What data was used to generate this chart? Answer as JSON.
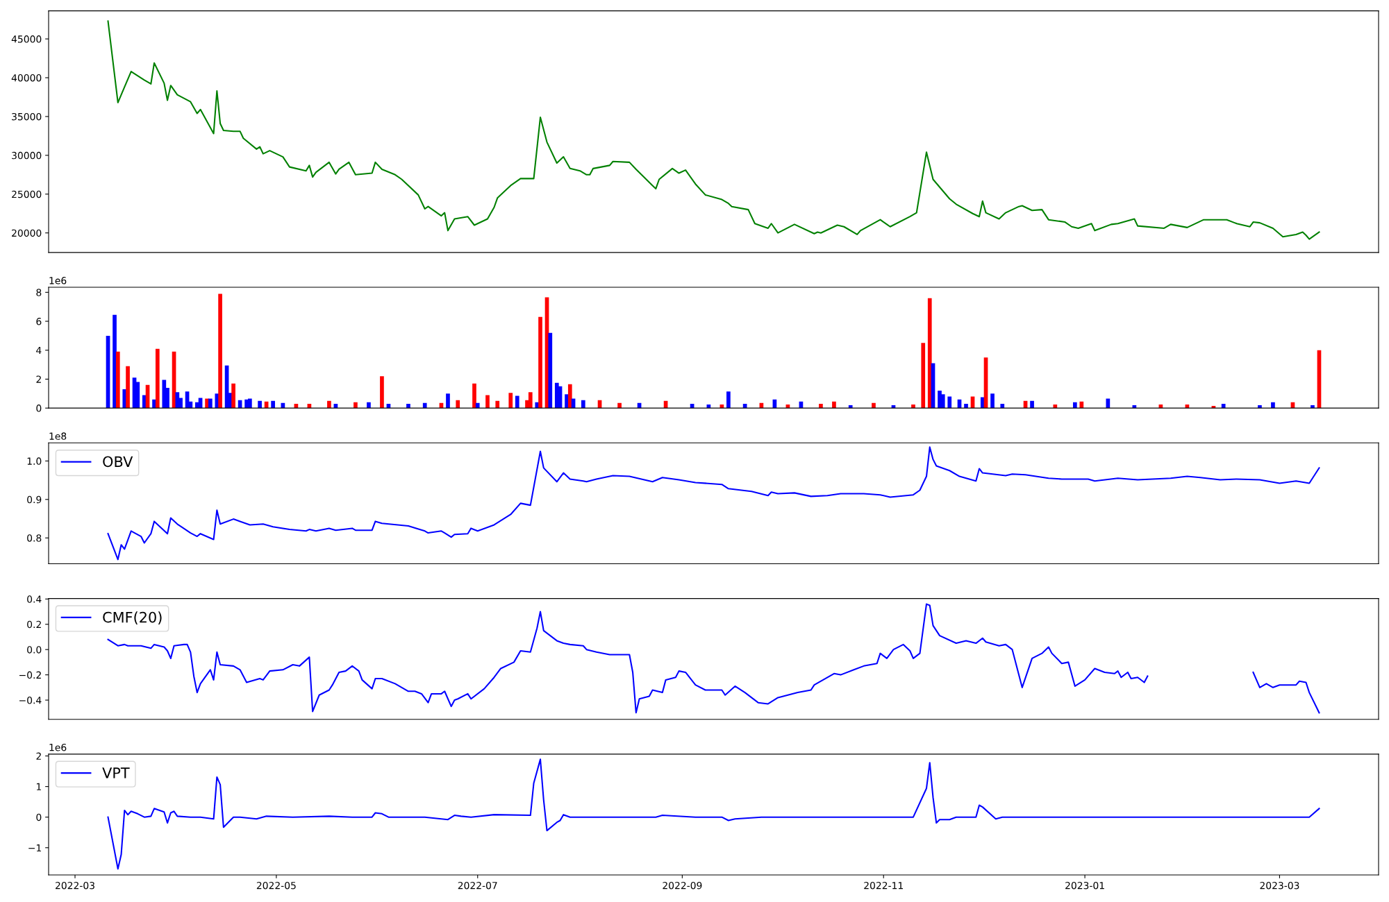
{
  "chart_data": [
    {
      "type": "line",
      "xlim": [
        "2022-02-21",
        "2023-03-31"
      ],
      "ylim": [
        17480,
        48620
      ],
      "yticks": [
        20000,
        25000,
        30000,
        35000,
        40000,
        45000
      ],
      "tick_labels": "y",
      "x": [
        "2022-03-11",
        "2022-03-14",
        "2022-03-16",
        "2022-03-18",
        "2022-03-22",
        "2022-03-24",
        "2022-03-25",
        "2022-03-28",
        "2022-03-29",
        "2022-03-30",
        "2022-04-01",
        "2022-04-05",
        "2022-04-07",
        "2022-04-08",
        "2022-04-12",
        "2022-04-13",
        "2022-04-14",
        "2022-04-15",
        "2022-04-18",
        "2022-04-20",
        "2022-04-21",
        "2022-04-25",
        "2022-04-26",
        "2022-04-27",
        "2022-04-29",
        "2022-05-03",
        "2022-05-05",
        "2022-05-10",
        "2022-05-11",
        "2022-05-12",
        "2022-05-13",
        "2022-05-17",
        "2022-05-19",
        "2022-05-20",
        "2022-05-23",
        "2022-05-25",
        "2022-05-30",
        "2022-05-31",
        "2022-06-02",
        "2022-06-06",
        "2022-06-08",
        "2022-06-13",
        "2022-06-15",
        "2022-06-16",
        "2022-06-20",
        "2022-06-21",
        "2022-06-22",
        "2022-06-24",
        "2022-06-28",
        "2022-06-30",
        "2022-07-04",
        "2022-07-06",
        "2022-07-07",
        "2022-07-11",
        "2022-07-14",
        "2022-07-18",
        "2022-07-20",
        "2022-07-22",
        "2022-07-25",
        "2022-07-27",
        "2022-07-29",
        "2022-08-01",
        "2022-08-03",
        "2022-08-04",
        "2022-08-05",
        "2022-08-10",
        "2022-08-11",
        "2022-08-16",
        "2022-08-18",
        "2022-08-23",
        "2022-08-24",
        "2022-08-25",
        "2022-08-29",
        "2022-08-31",
        "2022-09-02",
        "2022-09-05",
        "2022-09-08",
        "2022-09-13",
        "2022-09-15",
        "2022-09-16",
        "2022-09-21",
        "2022-09-23",
        "2022-09-27",
        "2022-09-28",
        "2022-09-30",
        "2022-10-05",
        "2022-10-11",
        "2022-10-12",
        "2022-10-13",
        "2022-10-18",
        "2022-10-20",
        "2022-10-24",
        "2022-10-25",
        "2022-10-31",
        "2022-11-02",
        "2022-11-03",
        "2022-11-09",
        "2022-11-11",
        "2022-11-14",
        "2022-11-16",
        "2022-11-21",
        "2022-11-23",
        "2022-11-28",
        "2022-11-30",
        "2022-12-01",
        "2022-12-02",
        "2022-12-06",
        "2022-12-08",
        "2022-12-12",
        "2022-12-13",
        "2022-12-16",
        "2022-12-19",
        "2022-12-21",
        "2022-12-26",
        "2022-12-28",
        "2022-12-30",
        "2023-01-03",
        "2023-01-04",
        "2023-01-09",
        "2023-01-11",
        "2023-01-16",
        "2023-01-17",
        "2023-01-25",
        "2023-01-27",
        "2023-02-01",
        "2023-02-06",
        "2023-02-13",
        "2023-02-16",
        "2023-02-20",
        "2023-02-21",
        "2023-02-23",
        "2023-02-27",
        "2023-03-02",
        "2023-03-06",
        "2023-03-08",
        "2023-03-09",
        "2023-03-10",
        "2023-03-13"
      ],
      "series": [
        {
          "color": "#008000",
          "values": [
            47300,
            36800,
            38800,
            40800,
            39700,
            39200,
            41900,
            39300,
            37100,
            39000,
            37800,
            36900,
            35400,
            35900,
            32800,
            38300,
            34100,
            33200,
            33100,
            33100,
            32200,
            30800,
            31100,
            30200,
            30600,
            29800,
            28500,
            28000,
            28700,
            27200,
            27800,
            29100,
            27600,
            28200,
            29100,
            27500,
            27700,
            29100,
            28200,
            27500,
            26900,
            24900,
            23100,
            23400,
            22200,
            22600,
            20300,
            21800,
            22100,
            21000,
            21800,
            23300,
            24500,
            26100,
            27000,
            27000,
            34900,
            31700,
            29000,
            29800,
            28300,
            28000,
            27500,
            27500,
            28300,
            28700,
            29200,
            29100,
            28200,
            26100,
            25700,
            26900,
            28300,
            27700,
            28100,
            26300,
            24900,
            24300,
            23800,
            23400,
            23000,
            21200,
            20600,
            21200,
            20000,
            21100,
            19900,
            20100,
            20000,
            21000,
            20800,
            19800,
            20300,
            21700,
            21100,
            20800,
            22100,
            22600,
            30400,
            26900,
            24400,
            23700,
            22500,
            22100,
            24100,
            22600,
            21800,
            22600,
            23400,
            23500,
            22900,
            23000,
            21700,
            21400,
            20800,
            20600,
            21200,
            20300,
            21100,
            21200,
            21800,
            20900,
            20600,
            21100,
            20700,
            21700,
            21700,
            21200,
            20800,
            21400,
            21300,
            20600,
            19500,
            19800,
            20100,
            19700,
            19200,
            20100
          ]
        }
      ]
    },
    {
      "type": "bar",
      "xlim": [
        "2022-02-21",
        "2023-03-31"
      ],
      "ylim": [
        0,
        8.35
      ],
      "yticks": [
        0,
        2,
        4,
        6,
        8
      ],
      "tick_labels": "y",
      "annotations": [
        "1e6"
      ],
      "x": [
        "2022-03-11",
        "2022-03-13",
        "2022-03-14",
        "2022-03-16",
        "2022-03-17",
        "2022-03-19",
        "2022-03-20",
        "2022-03-22",
        "2022-03-23",
        "2022-03-25",
        "2022-03-26",
        "2022-03-28",
        "2022-03-29",
        "2022-03-31",
        "2022-04-01",
        "2022-04-02",
        "2022-04-04",
        "2022-04-05",
        "2022-04-07",
        "2022-04-08",
        "2022-04-10",
        "2022-04-11",
        "2022-04-13",
        "2022-04-14",
        "2022-04-16",
        "2022-04-17",
        "2022-04-18",
        "2022-04-20",
        "2022-04-22",
        "2022-04-23",
        "2022-04-26",
        "2022-04-28",
        "2022-04-30",
        "2022-05-03",
        "2022-05-07",
        "2022-05-11",
        "2022-05-17",
        "2022-05-19",
        "2022-05-25",
        "2022-05-29",
        "2022-06-02",
        "2022-06-04",
        "2022-06-10",
        "2022-06-15",
        "2022-06-20",
        "2022-06-22",
        "2022-06-25",
        "2022-06-30",
        "2022-07-01",
        "2022-07-04",
        "2022-07-07",
        "2022-07-11",
        "2022-07-13",
        "2022-07-16",
        "2022-07-17",
        "2022-07-19",
        "2022-07-20",
        "2022-07-22",
        "2022-07-23",
        "2022-07-25",
        "2022-07-26",
        "2022-07-28",
        "2022-07-29",
        "2022-07-30",
        "2022-08-02",
        "2022-08-07",
        "2022-08-13",
        "2022-08-19",
        "2022-08-27",
        "2022-09-04",
        "2022-09-09",
        "2022-09-13",
        "2022-09-15",
        "2022-09-20",
        "2022-09-25",
        "2022-09-29",
        "2022-10-03",
        "2022-10-07",
        "2022-10-13",
        "2022-10-17",
        "2022-10-22",
        "2022-10-29",
        "2022-11-04",
        "2022-11-10",
        "2022-11-13",
        "2022-11-15",
        "2022-11-16",
        "2022-11-18",
        "2022-11-19",
        "2022-11-21",
        "2022-11-24",
        "2022-11-26",
        "2022-11-28",
        "2022-12-01",
        "2022-12-02",
        "2022-12-04",
        "2022-12-07",
        "2022-12-14",
        "2022-12-16",
        "2022-12-23",
        "2022-12-29",
        "2022-12-31",
        "2023-01-08",
        "2023-01-16",
        "2023-01-24",
        "2023-02-01",
        "2023-02-09",
        "2023-02-12",
        "2023-02-23",
        "2023-02-27",
        "2023-03-05",
        "2023-03-11",
        "2023-03-13"
      ],
      "values": [
        5.0,
        6.45,
        3.9,
        1.3,
        2.9,
        2.1,
        1.8,
        0.9,
        1.6,
        0.6,
        4.1,
        1.95,
        1.4,
        3.9,
        1.1,
        0.7,
        1.15,
        0.45,
        0.4,
        0.7,
        0.65,
        0.65,
        1.0,
        7.9,
        2.95,
        1.05,
        1.7,
        0.55,
        0.6,
        0.65,
        0.5,
        0.45,
        0.5,
        0.35,
        0.3,
        0.3,
        0.5,
        0.3,
        0.4,
        0.4,
        2.2,
        0.3,
        0.3,
        0.35,
        0.35,
        1.0,
        0.55,
        1.7,
        0.35,
        0.9,
        0.5,
        1.05,
        0.85,
        0.55,
        1.1,
        0.4,
        6.3,
        7.65,
        5.2,
        1.75,
        1.5,
        0.95,
        1.65,
        0.65,
        0.55,
        0.55,
        0.35,
        0.35,
        0.5,
        0.3,
        0.25,
        0.25,
        1.15,
        0.3,
        0.35,
        0.6,
        0.25,
        0.45,
        0.3,
        0.45,
        0.2,
        0.35,
        0.2,
        0.25,
        4.5,
        7.6,
        3.1,
        1.2,
        0.95,
        0.8,
        0.6,
        0.3,
        0.8,
        0.75,
        3.5,
        1.0,
        0.3,
        0.5,
        0.5,
        0.25,
        0.4,
        0.45,
        0.65,
        0.2,
        0.25,
        0.25,
        0.15,
        0.3,
        0.2,
        0.4,
        0.4,
        0.2,
        4.0
      ],
      "colors": [
        "#0000ff",
        "#0000ff",
        "#ff0000",
        "#0000ff",
        "#ff0000",
        "#0000ff",
        "#0000ff",
        "#0000ff",
        "#ff0000",
        "#0000ff",
        "#ff0000",
        "#0000ff",
        "#0000ff",
        "#ff0000",
        "#0000ff",
        "#0000ff",
        "#0000ff",
        "#0000ff",
        "#0000ff",
        "#0000ff",
        "#ff0000",
        "#0000ff",
        "#0000ff",
        "#ff0000",
        "#0000ff",
        "#0000ff",
        "#ff0000",
        "#0000ff",
        "#0000ff",
        "#0000ff",
        "#0000ff",
        "#ff0000",
        "#0000ff",
        "#0000ff",
        "#ff0000",
        "#ff0000",
        "#ff0000",
        "#0000ff",
        "#ff0000",
        "#0000ff",
        "#ff0000",
        "#0000ff",
        "#0000ff",
        "#0000ff",
        "#ff0000",
        "#0000ff",
        "#ff0000",
        "#ff0000",
        "#0000ff",
        "#ff0000",
        "#ff0000",
        "#ff0000",
        "#0000ff",
        "#ff0000",
        "#ff0000",
        "#0000ff",
        "#ff0000",
        "#ff0000",
        "#0000ff",
        "#0000ff",
        "#0000ff",
        "#0000ff",
        "#ff0000",
        "#0000ff",
        "#0000ff",
        "#ff0000",
        "#ff0000",
        "#0000ff",
        "#ff0000",
        "#0000ff",
        "#0000ff",
        "#ff0000",
        "#0000ff",
        "#0000ff",
        "#ff0000",
        "#0000ff",
        "#ff0000",
        "#0000ff",
        "#ff0000",
        "#ff0000",
        "#0000ff",
        "#ff0000",
        "#0000ff",
        "#ff0000",
        "#ff0000",
        "#ff0000",
        "#0000ff",
        "#0000ff",
        "#0000ff",
        "#0000ff",
        "#0000ff",
        "#0000ff",
        "#ff0000",
        "#0000ff",
        "#ff0000",
        "#0000ff",
        "#0000ff",
        "#ff0000",
        "#0000ff",
        "#ff0000",
        "#0000ff",
        "#ff0000",
        "#0000ff",
        "#0000ff",
        "#ff0000",
        "#ff0000",
        "#ff0000",
        "#0000ff",
        "#0000ff",
        "#0000ff",
        "#ff0000",
        "#0000ff",
        "#ff0000"
      ]
    },
    {
      "type": "line",
      "xlim": [
        "2022-02-21",
        "2023-03-31"
      ],
      "ylim": [
        0.733,
        1.047
      ],
      "yticks": [
        0.8,
        0.9,
        {
          "value": 1.0,
          "label": "1.0"
        }
      ],
      "tick_labels": "y",
      "legend": "top left",
      "annotations": [
        "1e8"
      ],
      "x": [
        "2022-03-11",
        "2022-03-14",
        "2022-03-15",
        "2022-03-16",
        "2022-03-18",
        "2022-03-21",
        "2022-03-22",
        "2022-03-24",
        "2022-03-25",
        "2022-03-29",
        "2022-03-30",
        "2022-04-01",
        "2022-04-05",
        "2022-04-07",
        "2022-04-08",
        "2022-04-12",
        "2022-04-13",
        "2022-04-14",
        "2022-04-18",
        "2022-04-20",
        "2022-04-23",
        "2022-04-27",
        "2022-04-30",
        "2022-05-05",
        "2022-05-10",
        "2022-05-11",
        "2022-05-13",
        "2022-05-17",
        "2022-05-19",
        "2022-05-24",
        "2022-05-25",
        "2022-05-30",
        "2022-05-31",
        "2022-06-02",
        "2022-06-10",
        "2022-06-15",
        "2022-06-16",
        "2022-06-20",
        "2022-06-21",
        "2022-06-23",
        "2022-06-24",
        "2022-06-28",
        "2022-06-29",
        "2022-07-01",
        "2022-07-06",
        "2022-07-11",
        "2022-07-14",
        "2022-07-17",
        "2022-07-20",
        "2022-07-21",
        "2022-07-25",
        "2022-07-27",
        "2022-07-29",
        "2022-08-02",
        "2022-08-03",
        "2022-08-06",
        "2022-08-11",
        "2022-08-16",
        "2022-08-23",
        "2022-08-26",
        "2022-08-31",
        "2022-09-05",
        "2022-09-13",
        "2022-09-15",
        "2022-09-22",
        "2022-09-27",
        "2022-09-28",
        "2022-09-30",
        "2022-10-05",
        "2022-10-10",
        "2022-10-15",
        "2022-10-19",
        "2022-10-26",
        "2022-10-31",
        "2022-11-03",
        "2022-11-10",
        "2022-11-12",
        "2022-11-14",
        "2022-11-15",
        "2022-11-16",
        "2022-11-17",
        "2022-11-21",
        "2022-11-24",
        "2022-11-29",
        "2022-11-30",
        "2022-12-01",
        "2022-12-08",
        "2022-12-10",
        "2022-12-14",
        "2022-12-21",
        "2022-12-25",
        "2023-01-02",
        "2023-01-04",
        "2023-01-11",
        "2023-01-17",
        "2023-01-27",
        "2023-02-01",
        "2023-02-05",
        "2023-02-11",
        "2023-02-16",
        "2023-02-23",
        "2023-03-01",
        "2023-03-06",
        "2023-03-10",
        "2023-03-13"
      ],
      "series": [
        {
          "name": "OBV",
          "color": "#0000ff",
          "values": [
            0.811,
            0.744,
            0.782,
            0.771,
            0.818,
            0.804,
            0.787,
            0.811,
            0.843,
            0.811,
            0.852,
            0.836,
            0.813,
            0.804,
            0.811,
            0.796,
            0.872,
            0.836,
            0.849,
            0.843,
            0.834,
            0.836,
            0.829,
            0.822,
            0.818,
            0.822,
            0.818,
            0.825,
            0.82,
            0.825,
            0.82,
            0.82,
            0.843,
            0.838,
            0.831,
            0.818,
            0.813,
            0.818,
            0.813,
            0.802,
            0.809,
            0.811,
            0.825,
            0.818,
            0.834,
            0.861,
            0.89,
            0.885,
            1.025,
            0.982,
            0.946,
            0.969,
            0.953,
            0.948,
            0.946,
            0.953,
            0.962,
            0.96,
            0.946,
            0.957,
            0.951,
            0.944,
            0.939,
            0.928,
            0.921,
            0.91,
            0.919,
            0.915,
            0.917,
            0.908,
            0.91,
            0.915,
            0.915,
            0.912,
            0.906,
            0.912,
            0.924,
            0.96,
            1.036,
            1.004,
            0.987,
            0.975,
            0.96,
            0.948,
            0.98,
            0.969,
            0.962,
            0.966,
            0.964,
            0.955,
            0.953,
            0.953,
            0.948,
            0.955,
            0.951,
            0.955,
            0.96,
            0.957,
            0.951,
            0.953,
            0.951,
            0.942,
            0.948,
            0.942,
            0.982
          ]
        }
      ]
    },
    {
      "type": "line",
      "xlim": [
        "2022-02-21",
        "2023-03-31"
      ],
      "ylim": [
        -0.552,
        0.404
      ],
      "yticks": [
        {
          "value": -0.4,
          "label": "−0.4"
        },
        {
          "value": -0.2,
          "label": "−0.2"
        },
        {
          "value": 0,
          "label": "0.0"
        },
        {
          "value": 0.2,
          "label": "0.2"
        },
        {
          "value": 0.4,
          "label": "0.4"
        }
      ],
      "tick_labels": "y",
      "legend": "top left",
      "x": [
        "2022-03-11",
        "2022-03-14",
        "2022-03-16",
        "2022-03-17",
        "2022-03-21",
        "2022-03-24",
        "2022-03-25",
        "2022-03-28",
        "2022-03-29",
        "2022-03-30",
        "2022-03-31",
        "2022-04-03",
        "2022-04-04",
        "2022-04-05",
        "2022-04-06",
        "2022-04-07",
        "2022-04-08",
        "2022-04-11",
        "2022-04-12",
        "2022-04-13",
        "2022-04-14",
        "2022-04-18",
        "2022-04-20",
        "2022-04-22",
        "2022-04-26",
        "2022-04-27",
        "2022-04-29",
        "2022-05-03",
        "2022-05-06",
        "2022-05-08",
        "2022-05-11",
        "2022-05-12",
        "2022-05-14",
        "2022-05-17",
        "2022-05-18",
        "2022-05-20",
        "2022-05-22",
        "2022-05-24",
        "2022-05-26",
        "2022-05-27",
        "2022-05-30",
        "2022-05-31",
        "2022-06-02",
        "2022-06-06",
        "2022-06-08",
        "2022-06-10",
        "2022-06-12",
        "2022-06-14",
        "2022-06-16",
        "2022-06-17",
        "2022-06-20",
        "2022-06-21",
        "2022-06-23",
        "2022-06-24",
        "2022-06-25",
        "2022-06-28",
        "2022-06-29",
        "2022-07-03",
        "2022-07-06",
        "2022-07-08",
        "2022-07-12",
        "2022-07-14",
        "2022-07-17",
        "2022-07-19",
        "2022-07-20",
        "2022-07-21",
        "2022-07-25",
        "2022-07-27",
        "2022-07-29",
        "2022-08-02",
        "2022-08-03",
        "2022-08-06",
        "2022-08-10",
        "2022-08-11",
        "2022-08-16",
        "2022-08-17",
        "2022-08-18",
        "2022-08-19",
        "2022-08-22",
        "2022-08-23",
        "2022-08-26",
        "2022-08-27",
        "2022-08-30",
        "2022-08-31",
        "2022-09-02",
        "2022-09-05",
        "2022-09-08",
        "2022-09-13",
        "2022-09-14",
        "2022-09-17",
        "2022-09-20",
        "2022-09-24",
        "2022-09-27",
        "2022-09-30",
        "2022-10-06",
        "2022-10-10",
        "2022-10-11",
        "2022-10-17",
        "2022-10-19",
        "2022-10-23",
        "2022-10-26",
        "2022-10-30",
        "2022-10-31",
        "2022-11-02",
        "2022-11-04",
        "2022-11-07",
        "2022-11-09",
        "2022-11-10",
        "2022-11-12",
        "2022-11-14",
        "2022-11-15",
        "2022-11-16",
        "2022-11-18",
        "2022-11-23",
        "2022-11-26",
        "2022-11-29",
        "2022-12-01",
        "2022-12-02",
        "2022-12-06",
        "2022-12-08",
        "2022-12-10",
        "2022-12-13",
        "2022-12-16",
        "2022-12-19",
        "2022-12-21",
        "2022-12-22",
        "2022-12-25",
        "2022-12-27",
        "2022-12-29",
        "2023-01-01",
        "2023-01-04",
        "2023-01-07",
        "2023-01-10",
        "2023-01-11",
        "2023-01-12",
        "2023-01-14",
        "2023-01-15",
        "2023-01-17",
        "2023-01-19",
        "2023-01-20",
        "2023-02-01",
        "2023-02-21",
        "2023-02-23",
        "2023-02-25",
        "2023-02-27",
        "2023-03-01",
        "2023-03-06",
        "2023-03-07",
        "2023-03-09",
        "2023-03-10",
        "2023-03-13"
      ],
      "series": [
        {
          "name": "CMF(20)",
          "color": "#0000ff",
          "values": [
            0.08,
            0.03,
            0.04,
            0.03,
            0.03,
            0.01,
            0.04,
            0.02,
            -0.01,
            -0.07,
            0.03,
            0.04,
            0.04,
            -0.02,
            -0.21,
            -0.34,
            -0.27,
            -0.16,
            -0.24,
            -0.02,
            -0.12,
            -0.13,
            -0.16,
            -0.26,
            -0.23,
            -0.24,
            -0.17,
            -0.16,
            -0.12,
            -0.13,
            -0.06,
            -0.49,
            -0.36,
            -0.32,
            -0.28,
            -0.18,
            -0.17,
            -0.13,
            -0.17,
            -0.24,
            -0.31,
            -0.23,
            -0.23,
            -0.27,
            -0.3,
            -0.33,
            -0.33,
            -0.35,
            -0.42,
            -0.35,
            -0.35,
            -0.33,
            -0.45,
            -0.4,
            -0.39,
            -0.35,
            -0.39,
            -0.31,
            -0.22,
            -0.15,
            -0.1,
            -0.01,
            -0.02,
            0.17,
            0.3,
            0.15,
            0.07,
            0.05,
            0.04,
            0.03,
            0.0,
            -0.02,
            -0.04,
            -0.04,
            -0.04,
            -0.18,
            -0.5,
            -0.39,
            -0.37,
            -0.32,
            -0.34,
            -0.24,
            -0.22,
            -0.17,
            -0.18,
            -0.28,
            -0.32,
            -0.32,
            -0.36,
            -0.29,
            -0.34,
            -0.42,
            -0.43,
            -0.38,
            -0.34,
            -0.32,
            -0.28,
            -0.19,
            -0.2,
            -0.16,
            -0.13,
            -0.11,
            -0.03,
            -0.07,
            0.0,
            0.04,
            -0.01,
            -0.07,
            -0.03,
            0.36,
            0.35,
            0.19,
            0.11,
            0.05,
            0.07,
            0.05,
            0.09,
            0.06,
            0.03,
            0.04,
            0.0,
            -0.3,
            -0.07,
            -0.03,
            0.02,
            -0.03,
            -0.11,
            -0.1,
            -0.29,
            -0.24,
            -0.15,
            -0.18,
            -0.19,
            -0.17,
            -0.22,
            -0.18,
            -0.23,
            -0.22,
            -0.26,
            -0.21,
            null,
            -0.18,
            -0.3,
            -0.27,
            -0.3,
            -0.28,
            -0.28,
            -0.25,
            -0.26,
            -0.34,
            -0.5
          ]
        }
      ]
    },
    {
      "type": "line",
      "xlim": [
        "2022-02-21",
        "2023-03-31"
      ],
      "ylim": [
        -1.89,
        2.06
      ],
      "yticks": [
        {
          "value": -1,
          "label": "−1"
        },
        0,
        1,
        2
      ],
      "xticks": [
        "2022-03",
        "2022-05",
        "2022-07",
        "2022-09",
        "2022-11",
        "2023-01",
        "2023-03"
      ],
      "legend": "top left",
      "annotations": [
        "1e6"
      ],
      "x": [
        "2022-03-11",
        "2022-03-14",
        "2022-03-15",
        "2022-03-16",
        "2022-03-17",
        "2022-03-18",
        "2022-03-20",
        "2022-03-22",
        "2022-03-24",
        "2022-03-25",
        "2022-03-28",
        "2022-03-29",
        "2022-03-30",
        "2022-03-31",
        "2022-04-01",
        "2022-04-05",
        "2022-04-08",
        "2022-04-12",
        "2022-04-13",
        "2022-04-14",
        "2022-04-15",
        "2022-04-18",
        "2022-04-20",
        "2022-04-25",
        "2022-04-28",
        "2022-05-06",
        "2022-05-17",
        "2022-05-24",
        "2022-05-30",
        "2022-05-31",
        "2022-06-02",
        "2022-06-04",
        "2022-06-15",
        "2022-06-22",
        "2022-06-24",
        "2022-06-26",
        "2022-06-29",
        "2022-07-06",
        "2022-07-17",
        "2022-07-18",
        "2022-07-20",
        "2022-07-21",
        "2022-07-22",
        "2022-07-25",
        "2022-07-26",
        "2022-07-27",
        "2022-07-29",
        "2022-08-08",
        "2022-08-24",
        "2022-08-26",
        "2022-09-05",
        "2022-09-13",
        "2022-09-15",
        "2022-09-17",
        "2022-09-25",
        "2022-11-10",
        "2022-11-14",
        "2022-11-15",
        "2022-11-16",
        "2022-11-17",
        "2022-11-18",
        "2022-11-21",
        "2022-11-23",
        "2022-11-29",
        "2022-11-30",
        "2022-12-01",
        "2022-12-05",
        "2022-12-07",
        "2022-12-25",
        "2023-01-21",
        "2023-03-10",
        "2023-03-13"
      ],
      "series": [
        {
          "name": "VPT",
          "color": "#0000ff",
          "values": [
            0,
            -1.69,
            -1.22,
            0.22,
            0.08,
            0.19,
            0.11,
            0,
            0.03,
            0.28,
            0.17,
            -0.19,
            0.14,
            0.19,
            0.03,
            0,
            0,
            -0.06,
            1.31,
            1.06,
            -0.33,
            0,
            0,
            -0.06,
            0.03,
            0,
            0.03,
            0,
            0,
            0.14,
            0.11,
            0,
            0,
            -0.08,
            0.06,
            0.03,
            0,
            0.08,
            0.06,
            1.11,
            1.89,
            0.56,
            -0.44,
            -0.17,
            -0.11,
            0.08,
            0,
            0,
            0,
            0.06,
            0,
            0,
            -0.11,
            -0.06,
            0,
            0,
            0.94,
            1.78,
            0.64,
            -0.19,
            -0.08,
            -0.08,
            0,
            0,
            0.39,
            0.33,
            -0.06,
            0,
            0,
            0,
            0,
            0.28
          ]
        }
      ]
    }
  ]
}
